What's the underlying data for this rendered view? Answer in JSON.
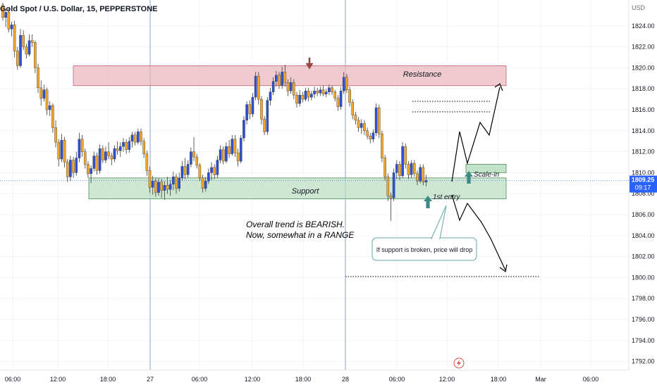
{
  "header": {
    "title": "Gold Spot / U.S. Dollar, 15, PEPPERSTONE"
  },
  "price_axis": {
    "currency": "USD",
    "ticks": [
      "1824.00",
      "1822.00",
      "1820.00",
      "1818.00",
      "1816.00",
      "1814.00",
      "1812.00",
      "1810.00",
      "1808.00",
      "1806.00",
      "1804.00",
      "1802.00",
      "1800.00",
      "1798.00",
      "1796.00",
      "1794.00",
      "1792.00"
    ],
    "current_price_label": "1809.25",
    "countdown_label": "09:17"
  },
  "time_axis": {
    "ticks": [
      "06:00",
      "12:00",
      "18:00",
      "27",
      "06:00",
      "12:00",
      "18:00",
      "28",
      "06:00",
      "12:00",
      "18:00",
      "Mar",
      "06:00"
    ]
  },
  "annotations": {
    "resistance_label": "Resistance",
    "support_label": "Support",
    "scale_in_label": "Scale-in",
    "first_entry_label": "1st entry",
    "trend_note_line1": "Overall trend is BEARISH.",
    "trend_note_line2": "Now, somewhat in a RANGE",
    "callout_text": "If support is broken, price will drop"
  },
  "colors": {
    "background": "#ffffff",
    "grid": "#f0f3fa",
    "session_line": "#8aa2c8",
    "candle_up": "#2e4fd6",
    "candle_down": "#f4a62a",
    "resistance_fill": "#e8b3bb",
    "resistance_border": "#c9606e",
    "support_fill": "#b9ddc1",
    "support_border": "#4f8e5f",
    "marker_arrow": "#3d8a86",
    "down_arrow": "#a04646",
    "price_label_bg": "#2962ff",
    "callout_border": "#62a8a8",
    "dotted": "#1a1a1a"
  },
  "chart_data": {
    "type": "candlestick",
    "symbol": "Gold Spot / U.S. Dollar",
    "interval": "15",
    "y_range": [
      1791,
      1826
    ],
    "resistance_zone": [
      1818.3,
      1820.2
    ],
    "support_zone": [
      1807.5,
      1809.5
    ],
    "levels_dotted": [
      1816.8,
      1815.8,
      1800.1
    ],
    "last_price": 1809.25,
    "candles": [
      [
        1826.0,
        1826.2,
        1824.5,
        1824.8
      ],
      [
        1824.8,
        1825.6,
        1823.9,
        1825.3
      ],
      [
        1825.3,
        1825.7,
        1823.4,
        1823.7
      ],
      [
        1823.7,
        1824.4,
        1823.0,
        1824.1
      ],
      [
        1824.1,
        1824.5,
        1821.0,
        1821.6
      ],
      [
        1821.6,
        1822.0,
        1819.8,
        1820.2
      ],
      [
        1820.2,
        1823.7,
        1820.0,
        1823.1
      ],
      [
        1823.1,
        1823.6,
        1821.7,
        1822.0
      ],
      [
        1822.0,
        1822.3,
        1820.9,
        1821.3
      ],
      [
        1821.3,
        1823.2,
        1821.1,
        1822.6
      ],
      [
        1822.6,
        1823.2,
        1822.0,
        1822.4
      ],
      [
        1822.4,
        1822.6,
        1819.5,
        1820.0
      ],
      [
        1820.0,
        1820.4,
        1817.6,
        1818.1
      ],
      [
        1818.1,
        1818.8,
        1816.4,
        1817.1
      ],
      [
        1817.1,
        1818.4,
        1816.8,
        1817.9
      ],
      [
        1817.9,
        1818.1,
        1815.5,
        1816.0
      ],
      [
        1816.0,
        1816.8,
        1815.4,
        1816.4
      ],
      [
        1816.4,
        1816.6,
        1813.8,
        1814.3
      ],
      [
        1814.3,
        1815.0,
        1812.4,
        1812.9
      ],
      [
        1812.9,
        1813.2,
        1810.6,
        1811.3
      ],
      [
        1811.3,
        1813.7,
        1811.0,
        1813.1
      ],
      [
        1813.1,
        1813.4,
        1810.5,
        1811.0
      ],
      [
        1811.0,
        1811.3,
        1809.1,
        1809.6
      ],
      [
        1809.6,
        1811.6,
        1809.2,
        1811.2
      ],
      [
        1811.2,
        1811.5,
        1809.5,
        1810.0
      ],
      [
        1810.0,
        1812.0,
        1809.7,
        1811.4
      ],
      [
        1811.4,
        1813.8,
        1811.0,
        1813.2
      ],
      [
        1813.2,
        1813.6,
        1811.5,
        1812.0
      ],
      [
        1812.0,
        1812.3,
        1810.4,
        1810.8
      ],
      [
        1810.8,
        1811.1,
        1809.5,
        1809.9
      ],
      [
        1809.9,
        1810.7,
        1809.0,
        1810.4
      ],
      [
        1810.4,
        1812.0,
        1810.1,
        1811.6
      ],
      [
        1811.6,
        1811.9,
        1809.8,
        1810.2
      ],
      [
        1810.2,
        1812.7,
        1809.9,
        1812.3
      ],
      [
        1812.3,
        1812.6,
        1810.9,
        1811.2
      ],
      [
        1811.2,
        1812.5,
        1810.9,
        1812.0
      ],
      [
        1812.0,
        1812.9,
        1811.3,
        1811.6
      ],
      [
        1811.6,
        1811.9,
        1810.7,
        1811.3
      ],
      [
        1811.3,
        1812.6,
        1811.0,
        1812.3
      ],
      [
        1812.3,
        1813.0,
        1811.7,
        1812.1
      ],
      [
        1812.1,
        1812.9,
        1811.5,
        1812.5
      ],
      [
        1812.5,
        1813.3,
        1812.0,
        1812.9
      ],
      [
        1812.9,
        1813.2,
        1811.8,
        1812.2
      ],
      [
        1812.2,
        1813.4,
        1811.9,
        1813.0
      ],
      [
        1813.0,
        1813.9,
        1812.4,
        1813.6
      ],
      [
        1813.6,
        1813.9,
        1812.6,
        1812.9
      ],
      [
        1812.9,
        1814.2,
        1812.7,
        1813.9
      ],
      [
        1813.9,
        1814.2,
        1812.6,
        1813.0
      ],
      [
        1813.0,
        1813.3,
        1811.4,
        1811.8
      ],
      [
        1811.8,
        1812.1,
        1809.7,
        1810.2
      ],
      [
        1810.2,
        1810.6,
        1808.1,
        1808.6
      ],
      [
        1808.6,
        1809.7,
        1807.9,
        1809.2
      ],
      [
        1809.2,
        1809.5,
        1807.7,
        1808.1
      ],
      [
        1808.1,
        1809.5,
        1807.8,
        1809.1
      ],
      [
        1809.1,
        1809.4,
        1807.6,
        1808.3
      ],
      [
        1808.3,
        1809.2,
        1807.4,
        1808.8
      ],
      [
        1808.8,
        1809.6,
        1808.0,
        1808.4
      ],
      [
        1808.4,
        1809.3,
        1807.8,
        1808.9
      ],
      [
        1808.9,
        1810.1,
        1808.3,
        1809.6
      ],
      [
        1809.6,
        1809.9,
        1808.0,
        1808.5
      ],
      [
        1808.5,
        1810.0,
        1808.2,
        1809.5
      ],
      [
        1809.5,
        1811.1,
        1809.2,
        1810.6
      ],
      [
        1810.6,
        1811.4,
        1809.4,
        1809.8
      ],
      [
        1809.8,
        1811.2,
        1809.5,
        1810.8
      ],
      [
        1810.8,
        1812.4,
        1810.5,
        1812.0
      ],
      [
        1812.0,
        1813.4,
        1811.1,
        1811.5
      ],
      [
        1811.5,
        1811.8,
        1810.4,
        1810.7
      ],
      [
        1810.7,
        1810.9,
        1809.2,
        1809.5
      ],
      [
        1809.5,
        1809.8,
        1808.1,
        1808.5
      ],
      [
        1808.5,
        1809.6,
        1808.2,
        1809.2
      ],
      [
        1809.2,
        1810.4,
        1808.9,
        1810.0
      ],
      [
        1810.0,
        1811.0,
        1809.3,
        1810.5
      ],
      [
        1810.5,
        1810.8,
        1809.4,
        1809.8
      ],
      [
        1809.8,
        1811.6,
        1809.5,
        1811.2
      ],
      [
        1811.2,
        1812.6,
        1810.9,
        1812.2
      ],
      [
        1812.2,
        1812.5,
        1810.8,
        1811.1
      ],
      [
        1811.1,
        1812.9,
        1810.9,
        1812.5
      ],
      [
        1812.5,
        1813.1,
        1811.4,
        1811.8
      ],
      [
        1811.8,
        1813.6,
        1811.6,
        1813.2
      ],
      [
        1813.2,
        1813.6,
        1811.5,
        1811.9
      ],
      [
        1811.9,
        1812.3,
        1810.6,
        1811.1
      ],
      [
        1811.1,
        1813.6,
        1810.9,
        1813.3
      ],
      [
        1813.3,
        1815.4,
        1813.0,
        1815.0
      ],
      [
        1815.0,
        1816.8,
        1814.6,
        1816.5
      ],
      [
        1816.5,
        1816.9,
        1815.1,
        1815.6
      ],
      [
        1815.6,
        1817.6,
        1815.3,
        1817.2
      ],
      [
        1817.2,
        1819.6,
        1816.9,
        1819.2
      ],
      [
        1819.2,
        1819.6,
        1816.5,
        1817.0
      ],
      [
        1817.0,
        1817.3,
        1814.6,
        1815.1
      ],
      [
        1815.1,
        1815.4,
        1813.6,
        1813.9
      ],
      [
        1813.9,
        1817.2,
        1813.6,
        1816.9
      ],
      [
        1816.9,
        1818.1,
        1816.4,
        1817.7
      ],
      [
        1817.7,
        1819.1,
        1817.4,
        1818.7
      ],
      [
        1818.7,
        1819.7,
        1818.2,
        1819.3
      ],
      [
        1819.3,
        1819.6,
        1818.0,
        1818.3
      ],
      [
        1818.3,
        1820.1,
        1818.0,
        1819.6
      ],
      [
        1819.6,
        1820.3,
        1818.2,
        1818.6
      ],
      [
        1818.6,
        1818.9,
        1817.3,
        1817.8
      ],
      [
        1817.8,
        1819.1,
        1817.5,
        1818.6
      ],
      [
        1818.6,
        1818.9,
        1817.0,
        1817.4
      ],
      [
        1817.4,
        1817.7,
        1816.2,
        1816.6
      ],
      [
        1816.6,
        1817.9,
        1816.3,
        1817.4
      ],
      [
        1817.4,
        1817.7,
        1816.7,
        1817.0
      ],
      [
        1817.0,
        1818.1,
        1816.8,
        1817.8
      ],
      [
        1817.8,
        1818.1,
        1816.8,
        1817.2
      ],
      [
        1817.2,
        1817.8,
        1816.9,
        1817.5
      ],
      [
        1817.5,
        1818.2,
        1817.1,
        1817.8
      ],
      [
        1817.8,
        1818.1,
        1817.3,
        1817.6
      ],
      [
        1817.6,
        1818.2,
        1817.3,
        1817.9
      ],
      [
        1817.9,
        1818.3,
        1817.3,
        1817.5
      ],
      [
        1817.5,
        1818.0,
        1817.2,
        1817.7
      ],
      [
        1817.7,
        1818.4,
        1817.4,
        1818.1
      ],
      [
        1818.1,
        1818.3,
        1817.4,
        1817.7
      ],
      [
        1817.7,
        1817.9,
        1816.8,
        1817.1
      ],
      [
        1817.1,
        1817.4,
        1815.9,
        1816.3
      ],
      [
        1816.3,
        1818.2,
        1816.0,
        1817.8
      ],
      [
        1817.8,
        1819.6,
        1817.5,
        1819.1
      ],
      [
        1819.1,
        1819.4,
        1817.6,
        1817.9
      ],
      [
        1817.9,
        1818.2,
        1816.3,
        1816.7
      ],
      [
        1816.7,
        1817.0,
        1815.1,
        1815.5
      ],
      [
        1815.5,
        1815.8,
        1814.6,
        1815.0
      ],
      [
        1815.0,
        1815.3,
        1813.9,
        1814.3
      ],
      [
        1814.3,
        1815.1,
        1813.7,
        1814.7
      ],
      [
        1814.7,
        1815.0,
        1813.6,
        1814.0
      ],
      [
        1814.0,
        1814.3,
        1813.2,
        1813.5
      ],
      [
        1813.5,
        1813.8,
        1812.8,
        1813.2
      ],
      [
        1813.2,
        1814.1,
        1812.9,
        1813.8
      ],
      [
        1813.8,
        1816.6,
        1813.5,
        1816.2
      ],
      [
        1816.2,
        1816.5,
        1813.3,
        1813.7
      ],
      [
        1813.7,
        1814.0,
        1811.0,
        1811.4
      ],
      [
        1811.4,
        1811.7,
        1809.2,
        1809.6
      ],
      [
        1809.6,
        1809.9,
        1807.3,
        1807.8
      ],
      [
        1807.8,
        1808.1,
        1805.4,
        1807.6
      ],
      [
        1807.6,
        1810.4,
        1807.3,
        1810.0
      ],
      [
        1810.0,
        1811.2,
        1809.4,
        1810.8
      ],
      [
        1810.8,
        1811.1,
        1809.3,
        1809.7
      ],
      [
        1809.7,
        1812.9,
        1809.5,
        1812.5
      ],
      [
        1812.5,
        1812.8,
        1810.4,
        1810.8
      ],
      [
        1810.8,
        1811.1,
        1809.4,
        1809.8
      ],
      [
        1809.8,
        1811.2,
        1809.5,
        1810.9
      ],
      [
        1810.9,
        1811.2,
        1809.6,
        1809.9
      ],
      [
        1809.9,
        1810.2,
        1808.8,
        1809.2
      ],
      [
        1809.2,
        1810.8,
        1809.0,
        1810.5
      ],
      [
        1810.5,
        1810.8,
        1808.8,
        1809.1
      ],
      [
        1809.1,
        1809.8,
        1808.7,
        1809.25
      ]
    ]
  }
}
